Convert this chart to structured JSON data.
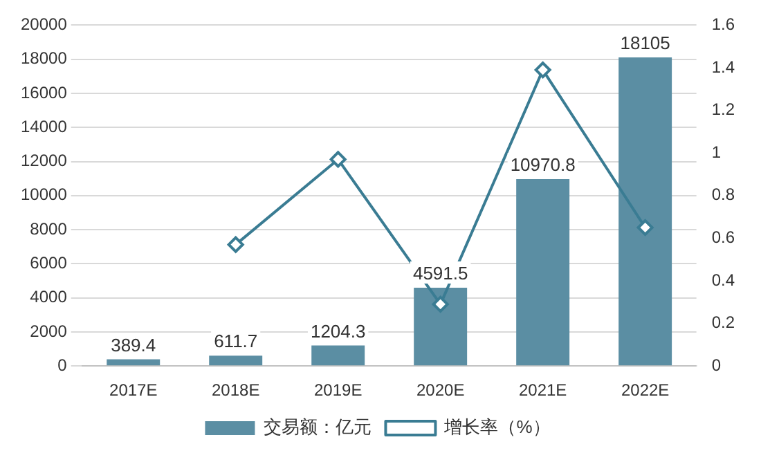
{
  "chart_data": {
    "type": "bar",
    "categories": [
      "2017E",
      "2018E",
      "2019E",
      "2020E",
      "2021E",
      "2022E"
    ],
    "series": [
      {
        "name": "交易额：亿元",
        "color": "#5b8ea3",
        "values": [
          389.4,
          611.7,
          1204.3,
          4591.5,
          10970.8,
          18105
        ],
        "value_labels": [
          "389.4",
          "611.7",
          "1204.3",
          "4591.5",
          "10970.8",
          "18105"
        ]
      },
      {
        "name": "增长率（%）",
        "type": "line",
        "axis": "y2",
        "color": "#3a7c93",
        "values": [
          null,
          0.57,
          0.97,
          0.29,
          1.39,
          0.65
        ]
      }
    ],
    "ylim": [
      0,
      20000
    ],
    "yticks": [
      0,
      2000,
      4000,
      6000,
      8000,
      10000,
      12000,
      14000,
      16000,
      18000,
      20000
    ],
    "y2lim": [
      0,
      1.6
    ],
    "y2ticks": [
      0,
      0.2,
      0.4,
      0.6,
      0.8,
      1,
      1.2,
      1.4,
      1.6
    ],
    "grid": "y",
    "legend": "bottom",
    "marker": "diamond"
  }
}
